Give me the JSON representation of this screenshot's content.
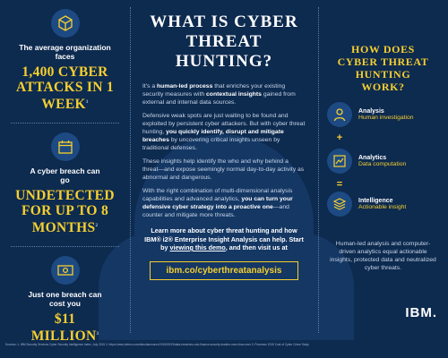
{
  "left": {
    "stat1_intro": "The average organization faces",
    "stat1_value": "1,400 CYBER ATTACKS IN 1 WEEK",
    "stat1_note": "1",
    "stat2_intro": "A cyber breach can go",
    "stat2_value": "UNDETECTED FOR UP TO 8 MONTHS",
    "stat2_note": "2",
    "stat3_intro": "Just one breach can cost you",
    "stat3_value": "$11 MILLION",
    "stat3_note": "3"
  },
  "middle": {
    "title": "WHAT IS CYBER THREAT HUNTING?",
    "p1_a": "It's a ",
    "p1_b": "human-led process",
    "p1_c": " that enriches your existing security measures with ",
    "p1_d": "contextual insights",
    "p1_e": " gained from external and internal data sources.",
    "p2_a": "Defensive weak spots are just waiting to be found and exploited by persistent cyber attackers. But with cyber threat hunting, ",
    "p2_b": "you quickly identify, disrupt and mitigate breaches",
    "p2_c": " by uncovering critical insights unseen by traditional defenses.",
    "p3": "These insights help identify the who and why behind a threat—and expose seemingly normal day-to-day activity as abnormal and dangerous.",
    "p4_a": "With the right combination of multi-dimensional analysis capabilities and advanced analytics, ",
    "p4_b": "you can turn your defensive cyber strategy into a proactive one",
    "p4_c": "—and counter and mitigate more threats.",
    "cta_a": "Learn more about cyber threat hunting and how IBM® i2® Enterprise Insight Analysis can help. Start by ",
    "cta_b": "viewing this demo",
    "cta_c": ", and then visit us at",
    "link": "ibm.co/cyberthreatanalysis"
  },
  "right": {
    "title": "HOW DOES CYBER THREAT HUNTING WORK?",
    "step1_title": "Analysis",
    "step1_sub": "Human investigation",
    "step2_title": "Analytics",
    "step2_sub": "Data computation",
    "step3_title": "Intelligence",
    "step3_sub": "Actionable insight",
    "plus": "+",
    "equals": "=",
    "summary": "Human-led analysis and computer-driven analytics equal actionable insights, protected data and neutralized cyber threats.",
    "logo": "IBM."
  },
  "footer": {
    "sources": "Sources: 1. IBM Security Services Cyber Security Intelligence Index, July 2015 2. https://www.forbes.com/sites/danmunro/2015/03/19/data-breaches-cost-finance-security-leaders-more-than-ever 3. Ponemon 2015 Cost of Cyber Crime Study"
  },
  "colors": {
    "background": "#0d2a4f",
    "accent": "#f6cf2f",
    "badge": "#1d4a82"
  }
}
